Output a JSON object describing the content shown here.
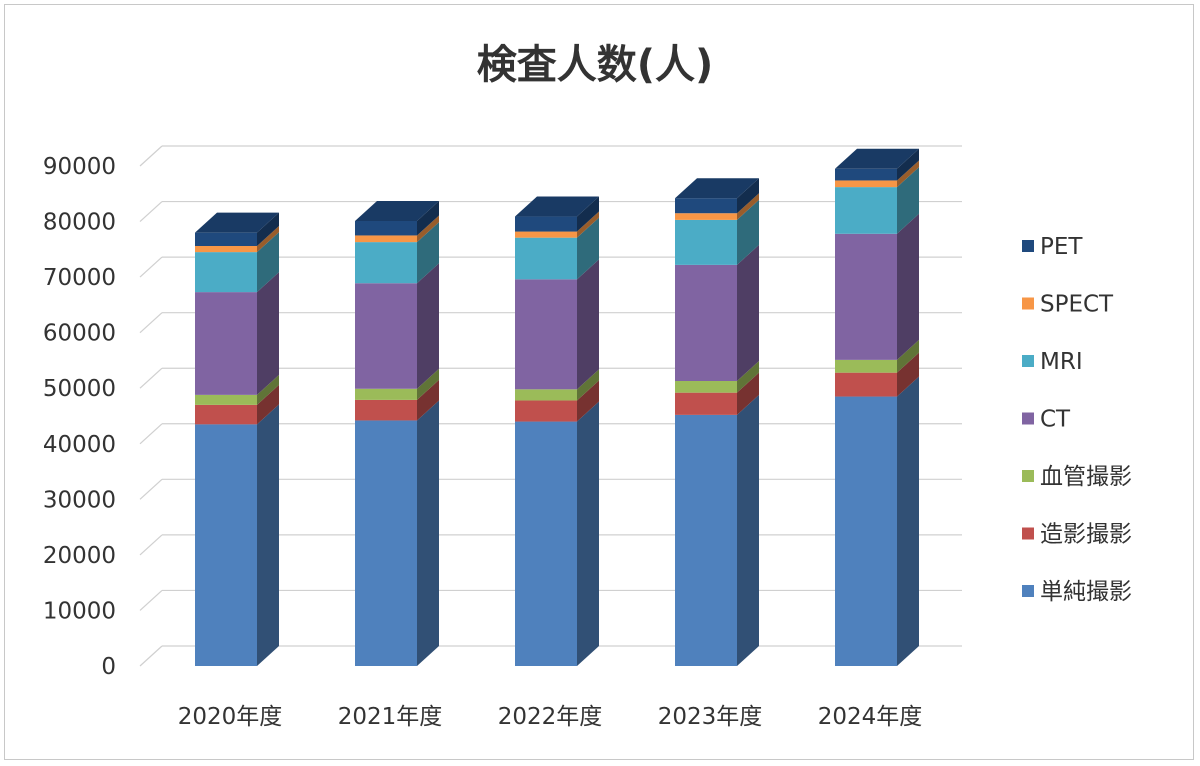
{
  "chart_data": {
    "type": "bar",
    "stacked": true,
    "style": "3d-stacked-column",
    "title": "検査人数(人)",
    "xlabel": "",
    "ylabel": "",
    "categories": [
      "2020年度",
      "2021年度",
      "2022年度",
      "2023年度",
      "2024年度"
    ],
    "ylim": [
      0,
      90000
    ],
    "yticks": [
      "0",
      "10000",
      "20000",
      "30000",
      "40000",
      "50000",
      "60000",
      "70000",
      "80000",
      "90000"
    ],
    "grid": true,
    "legend_position": "right",
    "series": [
      {
        "name": "単純撮影",
        "color": "#4f81bd",
        "values": [
          43500,
          44200,
          44000,
          45200,
          48500
        ]
      },
      {
        "name": "造影撮影",
        "color": "#c0504d",
        "values": [
          3500,
          3700,
          3800,
          4000,
          4300
        ]
      },
      {
        "name": "血管撮影",
        "color": "#9bbb59",
        "values": [
          1800,
          2000,
          2000,
          2100,
          2300
        ]
      },
      {
        "name": "CT",
        "color": "#8064a2",
        "values": [
          18500,
          19000,
          19800,
          20900,
          22700
        ]
      },
      {
        "name": "MRI",
        "color": "#4bacc6",
        "values": [
          7200,
          7400,
          7500,
          8100,
          8400
        ]
      },
      {
        "name": "SPECT",
        "color": "#f79646",
        "values": [
          1100,
          1200,
          1100,
          1200,
          1200
        ]
      },
      {
        "name": "PET",
        "color": "#1f497d",
        "values": [
          2400,
          2600,
          2700,
          2700,
          2100
        ]
      }
    ]
  }
}
